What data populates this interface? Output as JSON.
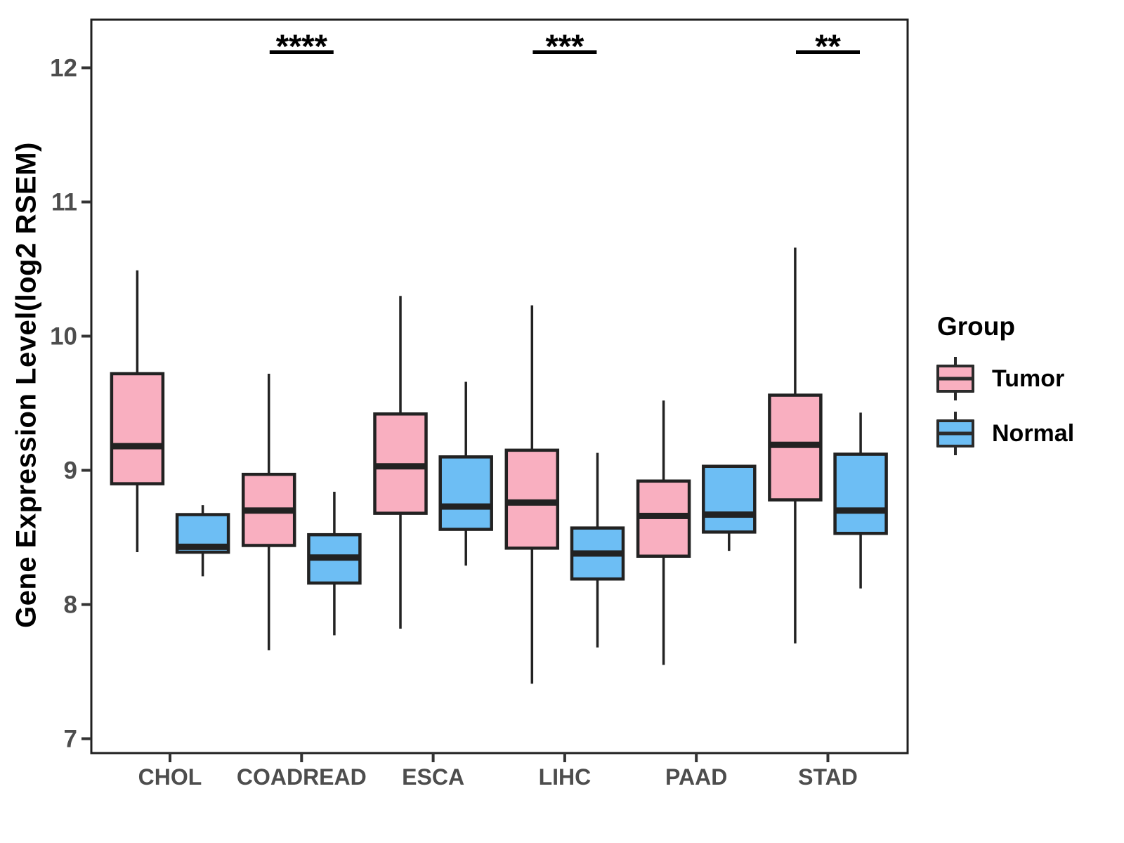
{
  "y_axis": {
    "title": "Gene Expression Level(log2 RSEM)"
  },
  "legend": {
    "title": "Group",
    "items": [
      {
        "label": "Tumor",
        "color": "#F9AFC0"
      },
      {
        "label": "Normal",
        "color": "#6DBEF4"
      }
    ]
  },
  "colors": {
    "tumor_fill": "#F9AFC0",
    "normal_fill": "#6DBEF4",
    "box_border": "#222222",
    "axis_text": "#4D4D4D",
    "panel_border": "#1f1f1f",
    "annotation": "#000000"
  },
  "chart_data": {
    "type": "boxplot",
    "title": "",
    "xlabel": "",
    "ylabel": "Gene Expression Level(log2 RSEM)",
    "categories": [
      "CHOL",
      "COADREAD",
      "ESCA",
      "LIHC",
      "PAAD",
      "STAD"
    ],
    "yticks": [
      7,
      8,
      9,
      10,
      11,
      12
    ],
    "ylim": [
      6.85,
      12.4
    ],
    "grid": false,
    "legend_position": "right",
    "series": [
      {
        "name": "Tumor",
        "color": "#F9AFC0",
        "boxes": [
          {
            "category": "CHOL",
            "min": 8.39,
            "q1": 8.9,
            "median": 9.18,
            "q3": 9.72,
            "max": 10.49
          },
          {
            "category": "COADREAD",
            "min": 7.66,
            "q1": 8.44,
            "median": 8.7,
            "q3": 8.97,
            "max": 9.72
          },
          {
            "category": "ESCA",
            "min": 7.82,
            "q1": 8.68,
            "median": 9.03,
            "q3": 9.42,
            "max": 10.3
          },
          {
            "category": "LIHC",
            "min": 7.41,
            "q1": 8.42,
            "median": 8.76,
            "q3": 9.15,
            "max": 10.23
          },
          {
            "category": "PAAD",
            "min": 7.55,
            "q1": 8.36,
            "median": 8.66,
            "q3": 8.92,
            "max": 9.52
          },
          {
            "category": "STAD",
            "min": 7.71,
            "q1": 8.78,
            "median": 9.19,
            "q3": 9.56,
            "max": 10.66
          }
        ]
      },
      {
        "name": "Normal",
        "color": "#6DBEF4",
        "boxes": [
          {
            "category": "CHOL",
            "min": 8.21,
            "q1": 8.39,
            "median": 8.43,
            "q3": 8.67,
            "max": 8.74
          },
          {
            "category": "COADREAD",
            "min": 7.77,
            "q1": 8.16,
            "median": 8.35,
            "q3": 8.52,
            "max": 8.84
          },
          {
            "category": "ESCA",
            "min": 8.29,
            "q1": 8.56,
            "median": 8.73,
            "q3": 9.1,
            "max": 9.66
          },
          {
            "category": "LIHC",
            "min": 7.68,
            "q1": 8.19,
            "median": 8.38,
            "q3": 8.57,
            "max": 9.13
          },
          {
            "category": "PAAD",
            "min": 8.4,
            "q1": 8.54,
            "median": 8.67,
            "q3": 9.03,
            "max": 9.03
          },
          {
            "category": "STAD",
            "min": 8.12,
            "q1": 8.53,
            "median": 8.7,
            "q3": 9.12,
            "max": 9.43
          }
        ]
      }
    ],
    "significance": [
      {
        "category": "COADREAD",
        "label": "****"
      },
      {
        "category": "LIHC",
        "label": "***"
      },
      {
        "category": "STAD",
        "label": "**"
      }
    ]
  }
}
